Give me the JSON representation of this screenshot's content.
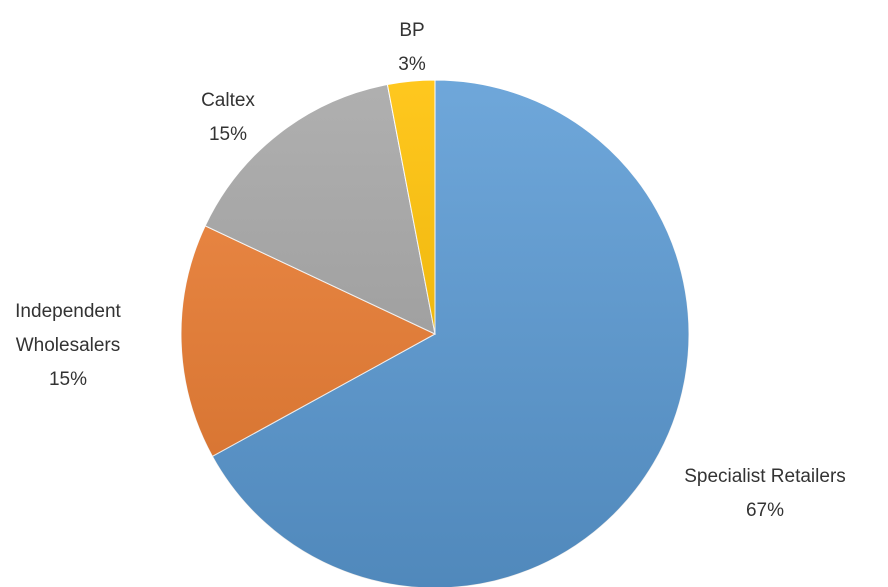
{
  "chart_data": {
    "type": "pie",
    "categories": [
      "Specialist Retailers",
      "Independent Wholesalers",
      "Caltex",
      "BP"
    ],
    "values": [
      67,
      15,
      15,
      3
    ],
    "value_labels": [
      "67%",
      "15%",
      "15%",
      "3%"
    ],
    "colors": [
      "#5b9bd5",
      "#ed7d31",
      "#a5a5a5",
      "#ffc000"
    ]
  }
}
